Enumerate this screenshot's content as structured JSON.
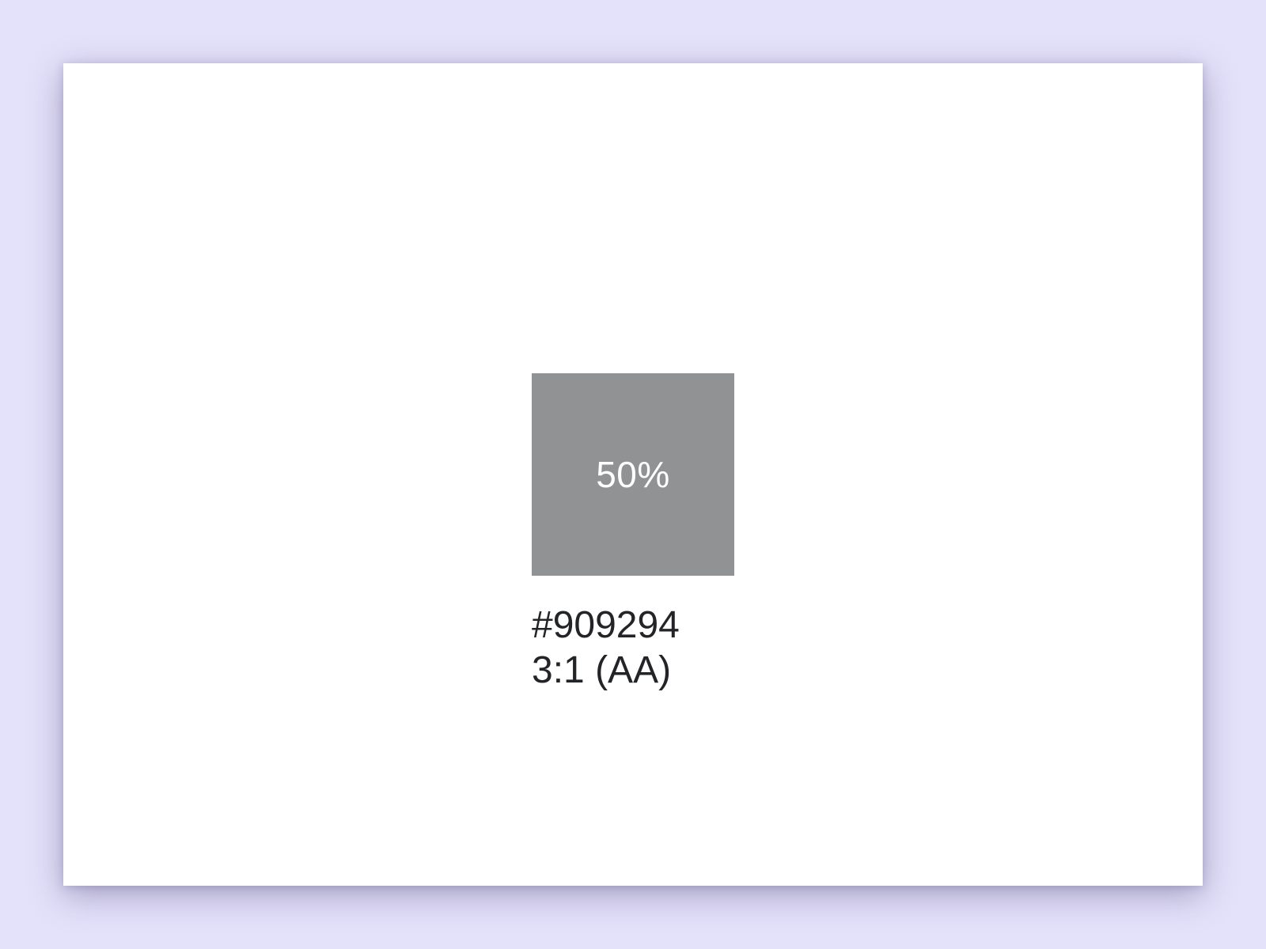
{
  "swatch": {
    "percent_label": "50%",
    "color": "#909294",
    "hex_label": "#909294",
    "contrast_label": "3:1 (AA)"
  },
  "colors": {
    "background": "#e4e1fa",
    "canvas": "#ffffff",
    "text": "#222428",
    "swatch_text": "#ffffff"
  }
}
